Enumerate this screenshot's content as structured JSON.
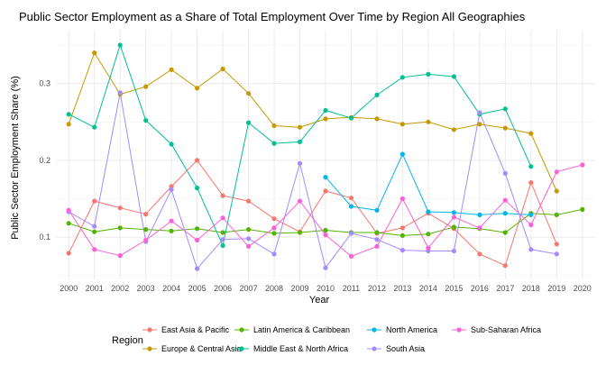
{
  "chart_data": {
    "type": "line",
    "title": "Public Sector Employment as a Share of Total Employment Over Time by Region All Geographies",
    "xlabel": "Year",
    "ylabel": "Public Sector Employment Share (%)",
    "x": [
      2000,
      2001,
      2002,
      2003,
      2004,
      2005,
      2006,
      2007,
      2008,
      2009,
      2010,
      2011,
      2012,
      2013,
      2014,
      2015,
      2016,
      2017,
      2018,
      2019,
      2020
    ],
    "xlim": [
      1999.5,
      2020.5
    ],
    "ylim": [
      0.045,
      0.37
    ],
    "yticks": [
      0.1,
      0.2,
      0.3
    ],
    "ytick_labels": [
      "0.1",
      "0.2",
      "0.3"
    ],
    "grid": true,
    "legend_title": "Region",
    "legend_position": "bottom",
    "series": [
      {
        "name": "East Asia & Pacific",
        "color": "#F8766D",
        "values": [
          0.079,
          0.147,
          0.138,
          0.13,
          0.166,
          0.2,
          0.154,
          0.147,
          0.124,
          0.107,
          0.16,
          0.151,
          0.105,
          0.112,
          0.131,
          0.111,
          0.078,
          0.063,
          0.171,
          0.091,
          null
        ]
      },
      {
        "name": "Europe & Central Asia",
        "color": "#C49A00",
        "values": [
          0.247,
          0.34,
          0.286,
          0.296,
          0.318,
          0.294,
          0.319,
          0.287,
          0.245,
          0.243,
          0.254,
          0.256,
          0.254,
          0.247,
          0.25,
          0.24,
          0.247,
          0.242,
          0.235,
          0.16,
          null
        ]
      },
      {
        "name": "Latin America & Caribbean",
        "color": "#53B400",
        "values": [
          0.118,
          0.107,
          0.112,
          0.11,
          0.108,
          0.111,
          0.106,
          0.11,
          0.105,
          0.106,
          0.109,
          0.106,
          0.106,
          0.102,
          0.104,
          0.113,
          0.111,
          0.106,
          0.131,
          0.129,
          0.136
        ]
      },
      {
        "name": "Middle East & North Africa",
        "color": "#00C094",
        "values": [
          0.26,
          0.243,
          0.35,
          0.252,
          0.221,
          0.164,
          0.089,
          0.249,
          0.222,
          0.224,
          0.265,
          0.255,
          0.285,
          0.308,
          0.312,
          0.309,
          0.26,
          0.267,
          0.192,
          null,
          null
        ]
      },
      {
        "name": "North America",
        "color": "#00B6EB",
        "values": [
          null,
          null,
          null,
          null,
          null,
          null,
          null,
          null,
          null,
          null,
          0.178,
          0.14,
          0.135,
          0.208,
          0.133,
          0.132,
          0.129,
          0.131,
          0.129,
          null,
          null
        ]
      },
      {
        "name": "South Asia",
        "color": "#A58AFF",
        "values": [
          0.133,
          0.114,
          0.288,
          0.094,
          0.162,
          0.059,
          0.097,
          0.098,
          0.078,
          0.196,
          0.06,
          0.105,
          0.097,
          0.083,
          0.082,
          0.082,
          0.262,
          0.183,
          0.084,
          0.078,
          null
        ]
      },
      {
        "name": "Sub-Saharan Africa",
        "color": "#FB61D7",
        "values": [
          0.135,
          0.084,
          0.076,
          0.096,
          0.121,
          0.096,
          0.125,
          0.088,
          0.112,
          0.147,
          0.103,
          0.075,
          0.088,
          0.15,
          0.086,
          0.126,
          0.112,
          0.148,
          0.116,
          0.185,
          0.194
        ]
      }
    ]
  }
}
